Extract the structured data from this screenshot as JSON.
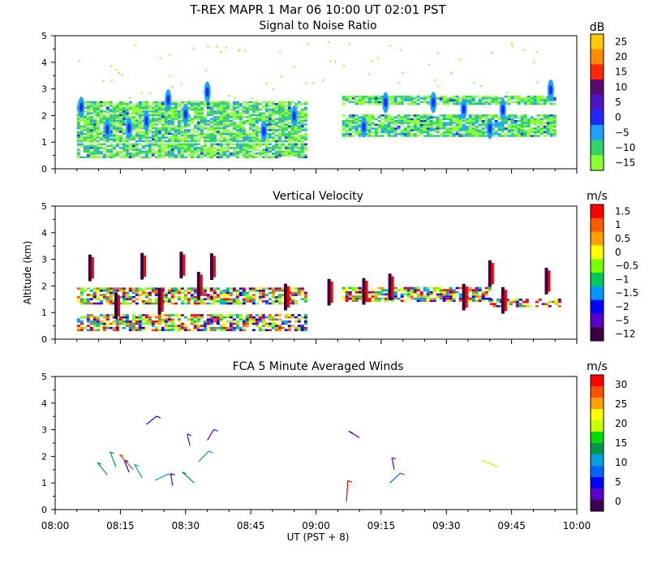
{
  "header": {
    "title": "T-REX   MAPR   1 Mar 06   10:00 UT   02:01   PST"
  },
  "x_axis": {
    "label": "UT  (PST + 8)",
    "ticks": [
      "08:00",
      "08:15",
      "08:30",
      "08:45",
      "09:00",
      "09:15",
      "09:30",
      "09:45",
      "10:00"
    ]
  },
  "chart_data": [
    {
      "type": "heatmap",
      "title": "Signal to Noise Ratio",
      "xlabel": "",
      "ylabel": "",
      "xlim": [
        "08:00",
        "10:00"
      ],
      "ylim": [
        0,
        5
      ],
      "yticks": [
        "0",
        "1",
        "2",
        "3",
        "4",
        "5"
      ],
      "colorbar": {
        "unit": "dB",
        "labels": [
          "25",
          "20",
          "15",
          "10",
          "5",
          "0",
          "−5",
          "−10",
          "−15"
        ],
        "colors": [
          "#ffc800",
          "#ff8c00",
          "#ff2800",
          "#5a0a6e",
          "#5014c8",
          "#1e28ff",
          "#1ea0ff",
          "#32d264",
          "#8cff32"
        ]
      },
      "features": [
        {
          "kind": "band",
          "t_start": "08:05",
          "t_end": "08:58",
          "z_bottom": 1.0,
          "z_top": 2.5
        },
        {
          "kind": "band",
          "t_start": "08:05",
          "t_end": "08:58",
          "z_bottom": 0.4,
          "z_top": 0.9
        },
        {
          "kind": "band",
          "t_start": "09:06",
          "t_end": "09:55",
          "z_bottom": 1.2,
          "z_top": 2.0
        },
        {
          "kind": "band",
          "t_start": "09:06",
          "t_end": "09:55",
          "z_bottom": 2.4,
          "z_top": 2.7
        }
      ]
    },
    {
      "type": "heatmap",
      "title": "Vertical Velocity",
      "xlabel": "",
      "ylabel": "Altitude (km)",
      "xlim": [
        "08:00",
        "10:00"
      ],
      "ylim": [
        0,
        5
      ],
      "yticks": [
        "0",
        "1",
        "2",
        "3",
        "4",
        "5"
      ],
      "colorbar": {
        "unit": "m/s",
        "labels": [
          "1.5",
          "1",
          "0.5",
          "0",
          "−0.5",
          "−1",
          "−1.5",
          "−2",
          "−5",
          "−12"
        ],
        "colors": [
          "#ff0000",
          "#ff5a00",
          "#ffa000",
          "#ffff00",
          "#78ff00",
          "#00c85a",
          "#0096ff",
          "#0000ff",
          "#5a00c8",
          "#3c0040"
        ]
      }
    },
    {
      "type": "scatter",
      "title": "FCA 5 Minute Averaged Winds",
      "xlabel": "",
      "ylabel": "",
      "xlim": [
        "08:00",
        "10:00"
      ],
      "ylim": [
        0,
        5
      ],
      "yticks": [
        "0",
        "1",
        "2",
        "3",
        "4",
        "5"
      ],
      "colorbar": {
        "unit": "m/s",
        "labels": [
          "30",
          "25",
          "20",
          "15",
          "10",
          "5",
          "0"
        ],
        "colors": [
          "#ff0000",
          "#ff5000",
          "#ffa000",
          "#ffff00",
          "#c8ff00",
          "#00dc00",
          "#009650",
          "#00a0dc",
          "#0064ff",
          "#0000ff",
          "#5a00c8",
          "#3c0050"
        ]
      },
      "barbs": [
        {
          "t": "08:12",
          "alt": 1.3,
          "speed": 14
        },
        {
          "t": "08:14",
          "alt": 1.6,
          "speed": 15
        },
        {
          "t": "08:17",
          "alt": 1.4,
          "speed": 6
        },
        {
          "t": "08:18",
          "alt": 1.5,
          "speed": 28
        },
        {
          "t": "08:20",
          "alt": 1.2,
          "speed": 12
        },
        {
          "t": "08:21",
          "alt": 3.2,
          "speed": 5
        },
        {
          "t": "08:23",
          "alt": 1.1,
          "speed": 10
        },
        {
          "t": "08:27",
          "alt": 0.9,
          "speed": 3
        },
        {
          "t": "08:31",
          "alt": 2.4,
          "speed": 2
        },
        {
          "t": "08:32",
          "alt": 1.0,
          "speed": 15
        },
        {
          "t": "08:33",
          "alt": 1.8,
          "speed": 10
        },
        {
          "t": "08:35",
          "alt": 2.6,
          "speed": 4
        },
        {
          "t": "09:07",
          "alt": 0.3,
          "speed": 30
        },
        {
          "t": "09:10",
          "alt": 2.7,
          "speed": 4
        },
        {
          "t": "09:17",
          "alt": 1.0,
          "speed": 9
        },
        {
          "t": "09:18",
          "alt": 1.5,
          "speed": 3
        },
        {
          "t": "09:42",
          "alt": 1.6,
          "speed": 20
        }
      ]
    }
  ]
}
